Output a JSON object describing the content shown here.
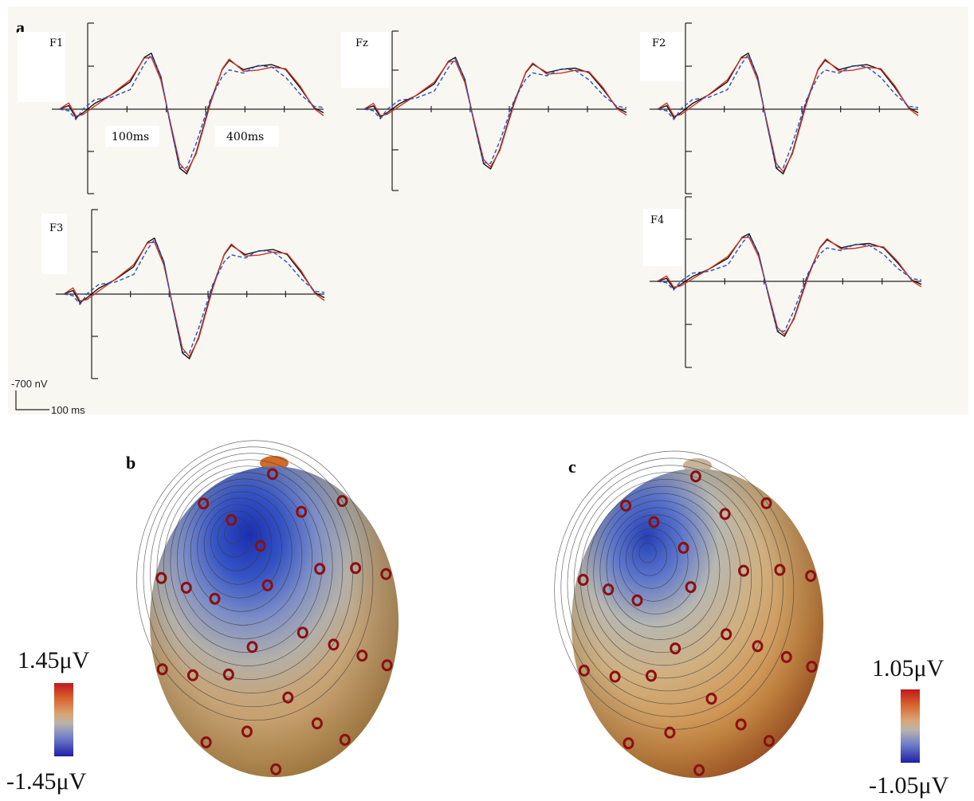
{
  "panels": {
    "a": "a",
    "b": "b",
    "c": "c"
  },
  "erp": {
    "channels": [
      "F1",
      "Fz",
      "F2",
      "F3",
      "F4"
    ],
    "time_labels": [
      "100ms",
      "400ms"
    ],
    "scale_amplitude": "-700 nV",
    "scale_time": "100 ms",
    "colors": {
      "black": "#111111",
      "red": "#d0322a",
      "blue": "#2e4fb8",
      "background": "#f8f7f2"
    }
  },
  "topomaps": {
    "b": {
      "max_label": "1.45μV",
      "min_label": "-1.45μV"
    },
    "c": {
      "max_label": "1.05μV",
      "min_label": "-1.05μV"
    }
  },
  "chart_data": [
    {
      "type": "line",
      "channel": "F1",
      "series": [
        "black",
        "red",
        "blue"
      ]
    },
    {
      "type": "line",
      "channel": "Fz",
      "series": [
        "black",
        "red",
        "blue"
      ]
    },
    {
      "type": "line",
      "channel": "F2",
      "series": [
        "black",
        "red",
        "blue"
      ]
    },
    {
      "type": "line",
      "channel": "F3",
      "series": [
        "black",
        "red",
        "blue"
      ]
    },
    {
      "type": "line",
      "channel": "F4",
      "series": [
        "black",
        "red",
        "blue"
      ]
    }
  ]
}
